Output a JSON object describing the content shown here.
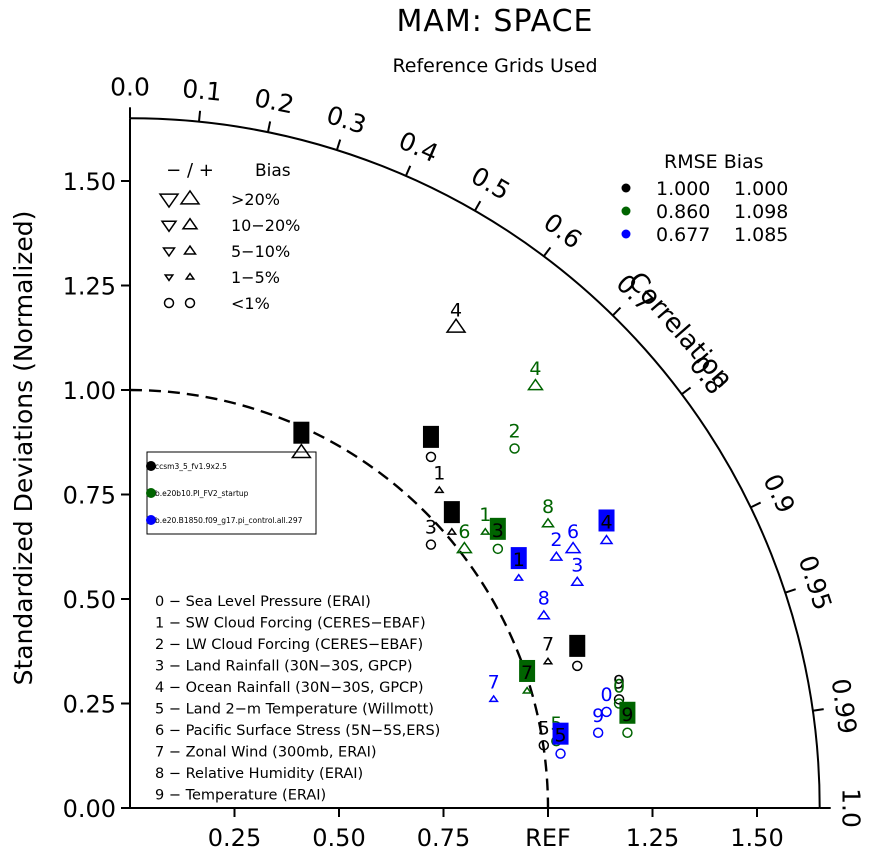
{
  "chart_data": {
    "type": "scatter",
    "title": "MAM: SPACE",
    "subtitle": "Reference Grids Used",
    "ylabel": "Standardized Deviations (Normalized)",
    "arc_label": "Correlation",
    "ylim": [
      0,
      1.65
    ],
    "y_ticks": [
      "0.00",
      "0.25",
      "0.50",
      "0.75",
      "1.00",
      "1.25",
      "1.50"
    ],
    "x_ticks": [
      "0.25",
      "0.50",
      "0.75",
      "REF",
      "1.25",
      "1.50"
    ],
    "correlation_ticks": [
      {
        "r": 0.0,
        "label": "0.0"
      },
      {
        "r": 0.1,
        "label": "0.1"
      },
      {
        "r": 0.2,
        "label": "0.2"
      },
      {
        "r": 0.3,
        "label": "0.3"
      },
      {
        "r": 0.4,
        "label": "0.4"
      },
      {
        "r": 0.5,
        "label": "0.5"
      },
      {
        "r": 0.6,
        "label": "0.6"
      },
      {
        "r": 0.7,
        "label": "0.7"
      },
      {
        "r": 0.8,
        "label": "0.8"
      },
      {
        "r": 0.9,
        "label": "0.9"
      },
      {
        "r": 0.95,
        "label": "0.95"
      },
      {
        "r": 0.99,
        "label": "0.99"
      },
      {
        "r": 1.0,
        "label": "1.0"
      }
    ],
    "bias_legend": {
      "header": [
        "− / +",
        "Bias"
      ],
      "rows": [
        {
          "label": ">20%",
          "symbol": "triangle",
          "size": 5
        },
        {
          "label": "10−20%",
          "symbol": "triangle",
          "size": 4
        },
        {
          "label": "5−10%",
          "symbol": "triangle",
          "size": 3
        },
        {
          "label": "1−5%",
          "symbol": "triangle",
          "size": 2
        },
        {
          "label": "<1%",
          "symbol": "circle",
          "size": 1
        }
      ]
    },
    "rmse_legend": {
      "header": "RMSE  Bias",
      "rows": [
        {
          "color": "#000000",
          "rmse": "1.000",
          "bias": "1.000"
        },
        {
          "color": "#006400",
          "rmse": "0.860",
          "bias": "1.098"
        },
        {
          "color": "#0000ff",
          "rmse": "0.677",
          "bias": "1.085"
        }
      ]
    },
    "series": [
      {
        "name": "ccsm3_5_fv1.9x2.5",
        "color": "#000000"
      },
      {
        "name": "b.e20b10.PI_FV2_startup",
        "color": "#006400"
      },
      {
        "name": "b.e20.B1850.f09_g17.pi_control.all.297",
        "color": "#0000ff"
      }
    ],
    "variables": [
      "0 − Sea Level Pressure (ERAI)",
      "1 − SW Cloud Forcing (CERES−EBAF)",
      "2 − LW Cloud Forcing (CERES−EBAF)",
      "3 − Land Rainfall (30N−30S, GPCP)",
      "4 − Ocean Rainfall (30N−30S, GPCP)",
      "5 − Land 2−m Temperature (Willmott)",
      "6 − Pacific Surface Stress (5N−5S,ERS)",
      "7 − Zonal Wind (300mb, ERAI)",
      "8 − Relative Humidity (ERAI)",
      "9 − Temperature (ERAI)"
    ],
    "points": [
      {
        "series": 0,
        "var": "0",
        "x": 1.07,
        "y": 0.34,
        "bias": "<1%",
        "boxed": true
      },
      {
        "series": 0,
        "var": "1",
        "x": 0.74,
        "y": 0.76,
        "bias": "1-5%",
        "boxed": false
      },
      {
        "series": 0,
        "var": "2",
        "x": 0.72,
        "y": 0.84,
        "bias": "<1%",
        "boxed": true
      },
      {
        "series": 0,
        "var": "3",
        "x": 0.72,
        "y": 0.63,
        "bias": "<1%",
        "boxed": false
      },
      {
        "series": 0,
        "var": "4",
        "x": 0.78,
        "y": 1.15,
        "bias": ">20%",
        "boxed": false
      },
      {
        "series": 0,
        "var": "5",
        "x": 0.99,
        "y": 0.15,
        "bias": "<1%",
        "boxed": false
      },
      {
        "series": 0,
        "var": "6",
        "x": 0.41,
        "y": 0.85,
        "bias": ">20%",
        "boxed": true
      },
      {
        "series": 0,
        "var": "7",
        "x": 1.0,
        "y": 0.35,
        "bias": "1-5%",
        "boxed": false
      },
      {
        "series": 0,
        "var": "8",
        "x": 0.77,
        "y": 0.66,
        "bias": "1-5%",
        "boxed": true
      },
      {
        "series": 0,
        "var": "9",
        "x": 1.17,
        "y": 0.26,
        "bias": "<1%",
        "boxed": false
      },
      {
        "series": 1,
        "var": "0",
        "x": 1.17,
        "y": 0.25,
        "bias": "<1%",
        "boxed": false
      },
      {
        "series": 1,
        "var": "1",
        "x": 0.85,
        "y": 0.66,
        "bias": "1-5%",
        "boxed": false
      },
      {
        "series": 1,
        "var": "2",
        "x": 0.92,
        "y": 0.86,
        "bias": "<1%",
        "boxed": false
      },
      {
        "series": 1,
        "var": "3",
        "x": 0.88,
        "y": 0.62,
        "bias": "<1%",
        "boxed": true
      },
      {
        "series": 1,
        "var": "4",
        "x": 0.97,
        "y": 1.01,
        "bias": "10-20%",
        "boxed": false
      },
      {
        "series": 1,
        "var": "5",
        "x": 1.02,
        "y": 0.16,
        "bias": "<1%",
        "boxed": false
      },
      {
        "series": 1,
        "var": "6",
        "x": 0.8,
        "y": 0.62,
        "bias": "10-20%",
        "boxed": false
      },
      {
        "series": 1,
        "var": "7",
        "x": 0.95,
        "y": 0.28,
        "bias": "1-5%",
        "boxed": true
      },
      {
        "series": 1,
        "var": "8",
        "x": 1.0,
        "y": 0.68,
        "bias": "5-10%",
        "boxed": false
      },
      {
        "series": 1,
        "var": "9",
        "x": 1.19,
        "y": 0.18,
        "bias": "<1%",
        "boxed": true
      },
      {
        "series": 2,
        "var": "0",
        "x": 1.14,
        "y": 0.23,
        "bias": "<1%",
        "boxed": false
      },
      {
        "series": 2,
        "var": "1",
        "x": 0.93,
        "y": 0.55,
        "bias": "1-5%",
        "boxed": true
      },
      {
        "series": 2,
        "var": "2",
        "x": 1.02,
        "y": 0.6,
        "bias": "5-10%",
        "boxed": false
      },
      {
        "series": 2,
        "var": "3",
        "x": 1.07,
        "y": 0.54,
        "bias": "5-10%",
        "boxed": false
      },
      {
        "series": 2,
        "var": "4",
        "x": 1.14,
        "y": 0.64,
        "bias": "5-10%",
        "boxed": true
      },
      {
        "series": 2,
        "var": "5",
        "x": 1.03,
        "y": 0.13,
        "bias": "<1%",
        "boxed": true
      },
      {
        "series": 2,
        "var": "6",
        "x": 1.06,
        "y": 0.62,
        "bias": "10-20%",
        "boxed": false
      },
      {
        "series": 2,
        "var": "7",
        "x": 0.87,
        "y": 0.26,
        "bias": "1-5%",
        "boxed": false
      },
      {
        "series": 2,
        "var": "8",
        "x": 0.99,
        "y": 0.46,
        "bias": "5-10%",
        "boxed": false
      },
      {
        "series": 2,
        "var": "9",
        "x": 1.12,
        "y": 0.18,
        "bias": "<1%",
        "boxed": false
      }
    ]
  }
}
